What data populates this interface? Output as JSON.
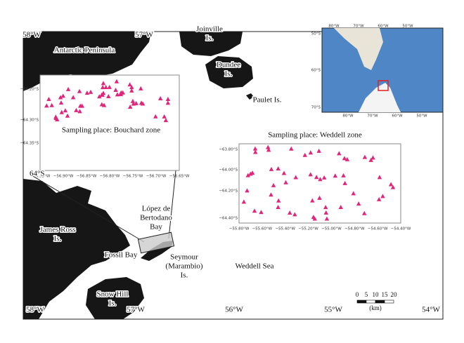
{
  "map": {
    "top_longitudes": [
      "58°W",
      "57°W"
    ],
    "bottom_longitudes": [
      "58°W",
      "57°W",
      "56°W",
      "55°W",
      "54°W"
    ],
    "latitude_label": "64°S",
    "places": [
      {
        "lines": [
          "Antarctic Peninsula"
        ]
      },
      {
        "lines": [
          "Joinville",
          "Is."
        ]
      },
      {
        "lines": [
          "Dundee",
          "Is."
        ]
      },
      {
        "lines": [
          "Paulet Is."
        ]
      },
      {
        "lines": [
          "James Ross",
          "Is."
        ]
      },
      {
        "lines": [
          "López de",
          "Bertodano",
          "Bay"
        ]
      },
      {
        "lines": [
          "Fossil Bay"
        ]
      },
      {
        "lines": [
          "Seymour",
          "(Marambio)",
          "Is."
        ]
      },
      {
        "lines": [
          "Weddell Sea"
        ]
      },
      {
        "lines": [
          "Snow Hill",
          "Is."
        ]
      }
    ],
    "scale": {
      "ticks": [
        "0",
        "5",
        "10",
        "15",
        "20"
      ],
      "unit": "(km)"
    }
  },
  "insets": [
    {
      "title": "Sampling place: Bouchard zone",
      "yticks": [
        "−64.20°S",
        "−64.30°S",
        "−64.35°S"
      ],
      "xticks": [
        "−56.95°W",
        "−56.90°W",
        "−56.85°W",
        "−56.80°W",
        "−56.75°W",
        "−56.70°W",
        "−56.65°W"
      ]
    },
    {
      "title": "Sampling place: Weddell zone",
      "yticks": [
        "−63.80°S",
        "−64.00°S",
        "−64.20°S",
        "−64.40°S"
      ],
      "xticks": [
        "−55.80°W",
        "−55.60°W",
        "−55.40°W",
        "−55.20°W",
        "−55.00°W",
        "−54.80°W",
        "−54.60°W",
        "−54.40°W"
      ]
    }
  ],
  "overview": {
    "longitudes": [
      "80°W",
      "70°W",
      "60°W",
      "50°W"
    ],
    "latitudes": [
      "50°S",
      "60°S",
      "70°S"
    ]
  }
}
